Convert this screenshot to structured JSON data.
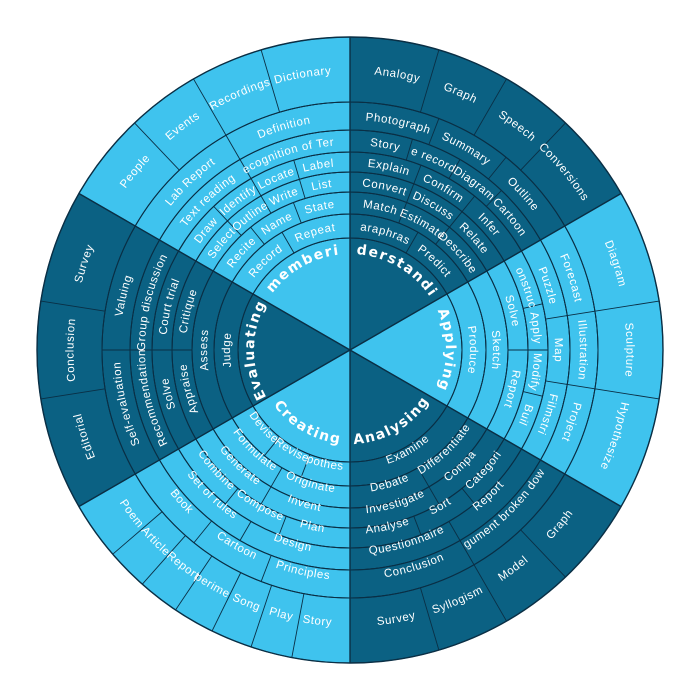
{
  "colors": {
    "dark": "#0b6183",
    "light": "#3fc3ee",
    "stroke": "#0a2f45"
  },
  "sectors": [
    {
      "name": "Remembering",
      "shade": "light",
      "ring1": [
        "Record",
        "Repeat"
      ],
      "ring2": [
        "Recite",
        "Name",
        "State"
      ],
      "ring3": [
        "Select",
        "Outline",
        "Write",
        "List"
      ],
      "ring4": [
        "Draw",
        "Identify",
        "Locate",
        "Label"
      ],
      "ring5": [
        "Text reading",
        "Recognition of Terms"
      ],
      "ring6": [
        "Lab Report",
        "Definition"
      ],
      "ring7": [
        "People",
        "Events",
        "Recordings",
        "Dictionary"
      ]
    },
    {
      "name": "Understanding",
      "shade": "dark",
      "ring1": [
        "Paraphrase",
        "Predict"
      ],
      "ring2": [
        "Match",
        "Estimate",
        "Describe"
      ],
      "ring3": [
        "Convert",
        "Discuss",
        "Relate"
      ],
      "ring4": [
        "Explain",
        "Confirm",
        "Infer"
      ],
      "ring5": [
        "Story",
        "Tape recording",
        "Diagram",
        "Cartoon"
      ],
      "ring6": [
        "Photograph",
        "Summary",
        "Outline"
      ],
      "ring7": [
        "Analogy",
        "Graph",
        "Speech",
        "Conversions"
      ]
    },
    {
      "name": "Applying",
      "shade": "light",
      "ring1": [
        "Produce"
      ],
      "ring2": [
        "Sketch"
      ],
      "ring3": [
        "Solve",
        "Report"
      ],
      "ring4": [
        "Construct",
        "Apply",
        "Modify",
        "Buil"
      ],
      "ring5": [
        "Puzzle",
        "Map",
        "Filmstri"
      ],
      "ring6": [
        "Forecast",
        "Illustration",
        "Project"
      ],
      "ring7": [
        "Diagram",
        "Sculpture",
        "Hypothesize"
      ]
    },
    {
      "name": "Analysing",
      "shade": "dark",
      "ring1": [
        "Examine"
      ],
      "ring2": [
        "Debate",
        "Differentiate"
      ],
      "ring3": [
        "Investigate",
        "Compa"
      ],
      "ring4": [
        "Analyse",
        "Sort",
        "Categori"
      ],
      "ring5": [
        "Questionnaire",
        "Report"
      ],
      "ring6": [
        "Conclusion",
        "Argument broken down"
      ],
      "ring7": [
        "Survey",
        "Syllogism",
        "Model",
        "Graph"
      ]
    },
    {
      "name": "Creating",
      "shade": "light",
      "ring1": [
        "Devise",
        "Revise",
        "Hypothesise"
      ],
      "ring2": [
        "Formulate",
        "Originate"
      ],
      "ring3": [
        "Generate",
        "Invent"
      ],
      "ring4": [
        "Combine",
        "Compose",
        "Plan"
      ],
      "ring5": [
        "Set of rules",
        "Design"
      ],
      "ring6": [
        "Book",
        "Cartoon",
        "Principles"
      ],
      "ring7": [
        "Poem",
        "Article",
        "Report",
        "Experiments",
        "Song",
        "Play",
        "Story"
      ]
    },
    {
      "name": "Evaluating",
      "shade": "dark",
      "ring1": [
        "Judge"
      ],
      "ring2": [
        "Assess"
      ],
      "ring3": [
        "Appraise",
        "Critique"
      ],
      "ring4": [
        "Solve",
        "Court trial"
      ],
      "ring5": [
        "Recommendation",
        "Group discussion"
      ],
      "ring6": [
        "Self-evaluation",
        "Valuing"
      ],
      "ring7": [
        "Editorial",
        "Conclusion",
        "Survey"
      ]
    }
  ]
}
